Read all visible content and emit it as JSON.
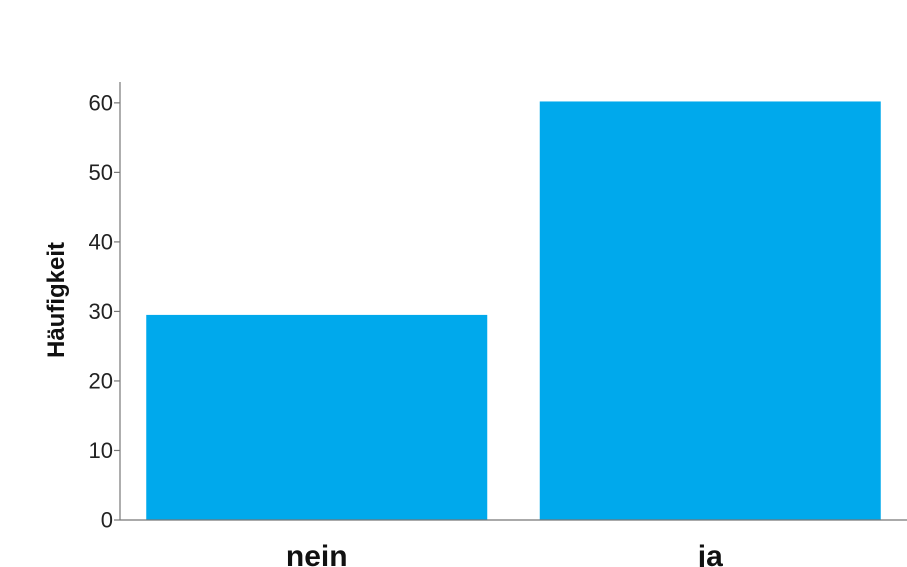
{
  "chart_data": {
    "type": "bar",
    "categories": [
      "nein",
      "ja"
    ],
    "values": [
      29.5,
      60.2
    ],
    "ylabel": "Häufigkeit",
    "xlabel": "",
    "ylim": [
      0,
      63
    ],
    "yticks": [
      0,
      10,
      20,
      30,
      40,
      50,
      60
    ],
    "grid": false,
    "colors": {
      "bar": "#00A9EC",
      "axis": "#777777"
    }
  }
}
